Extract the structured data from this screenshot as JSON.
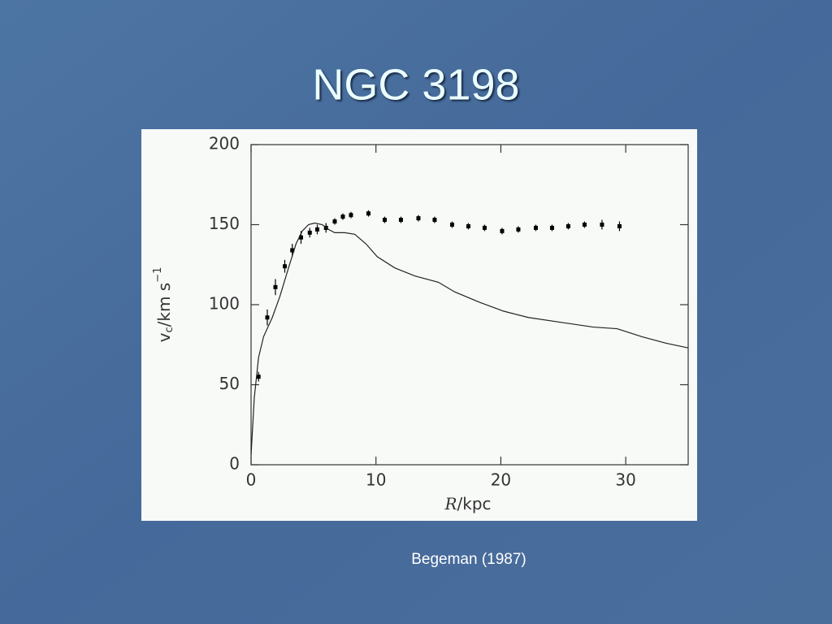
{
  "title": "NGC 3198",
  "source": "Begeman (1987)",
  "chart_data": {
    "type": "scatter",
    "xlabel": {
      "symbol": "R",
      "unit": "/kpc"
    },
    "ylabel": {
      "symbol": "v",
      "subscript": "c",
      "unit": "/km s",
      "superscript": "−1"
    },
    "xlim": [
      0,
      35
    ],
    "xticks": [
      0,
      10,
      20,
      30
    ],
    "ylim": [
      0,
      200
    ],
    "yticks": [
      0,
      50,
      100,
      150,
      200
    ],
    "series": [
      {
        "type": "scatter",
        "color": "#000000",
        "x": [
          0.6,
          1.3,
          1.95,
          2.7,
          3.3,
          4.0,
          4.7,
          5.3,
          6.0,
          6.7,
          7.35,
          8.0,
          9.4,
          10.7,
          12.0,
          13.4,
          14.7,
          16.1,
          17.4,
          18.7,
          20.1,
          21.4,
          22.8,
          24.1,
          25.4,
          26.7,
          28.1,
          29.5
        ],
        "values": [
          55,
          92,
          111,
          124,
          134,
          142,
          145,
          147,
          148,
          152,
          155,
          156,
          157,
          153,
          153,
          154,
          153,
          150,
          149,
          148,
          146,
          147,
          148,
          148,
          149,
          150,
          150,
          149
        ],
        "errors": [
          3,
          5,
          5,
          4,
          4,
          4,
          3,
          3,
          3,
          2,
          2,
          2,
          2,
          2,
          2,
          2,
          2,
          2,
          2,
          2,
          2,
          2,
          2,
          2,
          2,
          2,
          3,
          3
        ]
      },
      {
        "type": "line",
        "color": "#222222",
        "x": [
          0.0,
          0.26,
          0.6,
          1.0,
          1.7,
          2.3,
          3.0,
          3.6,
          4.1,
          4.6,
          5.1,
          5.7,
          6.2,
          6.7,
          7.5,
          8.3,
          9.2,
          10.1,
          11.5,
          13.1,
          15.0,
          16.3,
          18.3,
          20.2,
          22.2,
          24.8,
          27.4,
          29.3,
          31.3,
          33.2,
          35.0
        ],
        "values": [
          6,
          42,
          67,
          80,
          92,
          105,
          123,
          138,
          146,
          150,
          151,
          150,
          147,
          145,
          145,
          144,
          138,
          130,
          123,
          118,
          114,
          108,
          101.5,
          96,
          92,
          89,
          86,
          85,
          80,
          76,
          73
        ]
      }
    ]
  }
}
